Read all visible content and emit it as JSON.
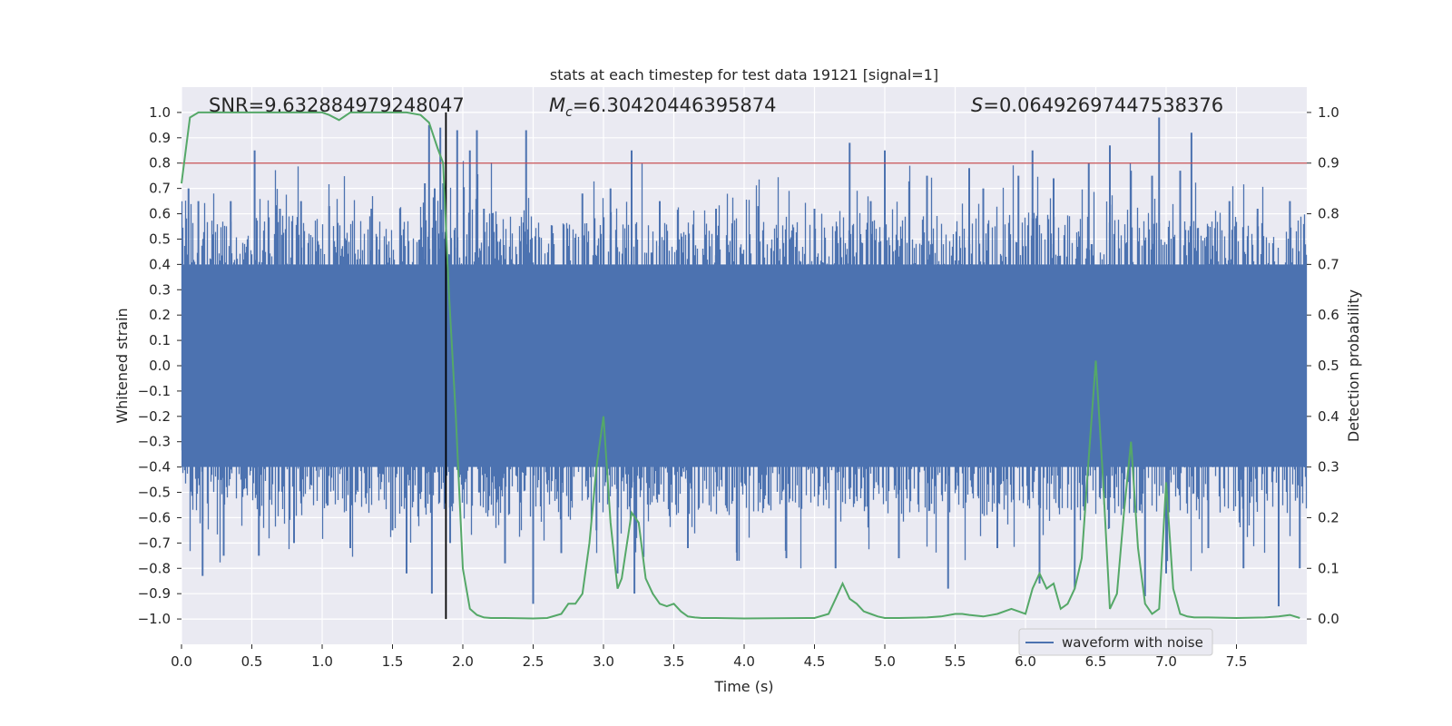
{
  "chart_data": {
    "type": "line",
    "title": "stats at each timestep for test data 19121 [signal=1]",
    "xlabel": "Time (s)",
    "ylabel": "Whitened strain",
    "y2label": "Detection probability",
    "xlim": [
      0,
      8
    ],
    "ylim": [
      -1.1,
      1.1
    ],
    "y2lim": [
      -0.05,
      1.05
    ],
    "x_ticks": [
      "0.0",
      "0.5",
      "1.0",
      "1.5",
      "2.0",
      "2.5",
      "3.0",
      "3.5",
      "4.0",
      "4.5",
      "5.0",
      "5.5",
      "6.0",
      "6.5",
      "7.0",
      "7.5"
    ],
    "y_ticks": [
      "1.0",
      "0.9",
      "0.8",
      "0.7",
      "0.6",
      "0.5",
      "0.4",
      "0.3",
      "0.2",
      "0.1",
      "0.0",
      "-0.1",
      "-0.2",
      "-0.3",
      "-0.4",
      "-0.5",
      "-0.6",
      "-0.7",
      "-0.8",
      "-0.9",
      "-1.0"
    ],
    "y2_ticks": [
      "1.0",
      "0.9",
      "0.8",
      "0.7",
      "0.6",
      "0.5",
      "0.4",
      "0.3",
      "0.2",
      "0.1",
      "0.0"
    ],
    "annotations": {
      "snr": "SNR=9.632884979248047",
      "mc_symbol": "M",
      "mc_subscript": "c",
      "mc_value": "=6.30420446395874",
      "s_symbol": "S",
      "s_value": "=0.06492697447538376"
    },
    "threshold_y2": 0.9,
    "event_time": 1.88,
    "legend": {
      "label": "waveform with noise",
      "location": "lower-right"
    },
    "series": [
      {
        "name": "waveform with noise",
        "axis": "left",
        "color": "#4c72b0",
        "envelope_hi": [
          0.4,
          0.42,
          0.4,
          0.41,
          0.44,
          0.4,
          0.39,
          0.41,
          0.4,
          0.42,
          0.4,
          0.41,
          0.43,
          0.41,
          0.4,
          0.42,
          0.41
        ],
        "envelope_lo": [
          -0.4,
          -0.42,
          -0.4,
          -0.41,
          -0.43,
          -0.4,
          -0.4,
          -0.42,
          -0.41,
          -0.4,
          -0.41,
          -0.42,
          -0.4,
          -0.41,
          -0.42,
          -0.41,
          -0.4
        ],
        "spikes": [
          [
            0.05,
            0.7
          ],
          [
            0.12,
            0.65
          ],
          [
            0.15,
            -0.83
          ],
          [
            0.3,
            -0.75
          ],
          [
            0.35,
            0.65
          ],
          [
            0.52,
            0.85
          ],
          [
            0.55,
            -0.75
          ],
          [
            0.7,
            0.62
          ],
          [
            0.8,
            -0.7
          ],
          [
            0.85,
            0.65
          ],
          [
            1.05,
            0.63
          ],
          [
            1.2,
            -0.72
          ],
          [
            1.35,
            0.62
          ],
          [
            1.5,
            -0.65
          ],
          [
            1.6,
            -0.82
          ],
          [
            1.73,
            0.72
          ],
          [
            1.76,
            0.95
          ],
          [
            1.78,
            -0.9
          ],
          [
            1.8,
            0.7
          ],
          [
            1.84,
            0.94
          ],
          [
            1.86,
            0.72
          ],
          [
            1.91,
            -0.7
          ],
          [
            1.96,
            0.93
          ],
          [
            2.05,
            0.85
          ],
          [
            2.1,
            0.93
          ],
          [
            2.15,
            0.62
          ],
          [
            2.3,
            -0.78
          ],
          [
            2.45,
            0.93
          ],
          [
            2.5,
            -0.94
          ],
          [
            2.7,
            -0.74
          ],
          [
            2.85,
            0.68
          ],
          [
            2.95,
            -0.65
          ],
          [
            3.05,
            0.7
          ],
          [
            3.1,
            -0.82
          ],
          [
            3.2,
            0.85
          ],
          [
            3.22,
            -0.9
          ],
          [
            3.4,
            0.65
          ],
          [
            3.6,
            -0.72
          ],
          [
            3.8,
            0.62
          ],
          [
            3.95,
            -0.77
          ],
          [
            4.1,
            0.63
          ],
          [
            4.3,
            -0.76
          ],
          [
            4.5,
            0.62
          ],
          [
            4.65,
            -0.8
          ],
          [
            4.75,
            0.88
          ],
          [
            4.9,
            0.65
          ],
          [
            5.0,
            0.85
          ],
          [
            5.1,
            -0.76
          ],
          [
            5.3,
            0.75
          ],
          [
            5.45,
            -0.88
          ],
          [
            5.6,
            0.78
          ],
          [
            5.7,
            0.7
          ],
          [
            5.8,
            -0.72
          ],
          [
            5.95,
            0.75
          ],
          [
            6.05,
            0.85
          ],
          [
            6.1,
            -0.86
          ],
          [
            6.2,
            0.74
          ],
          [
            6.35,
            -0.88
          ],
          [
            6.45,
            0.8
          ],
          [
            6.6,
            0.87
          ],
          [
            6.75,
            0.77
          ],
          [
            6.85,
            -0.91
          ],
          [
            6.9,
            0.75
          ],
          [
            6.95,
            0.98
          ],
          [
            7.0,
            -0.82
          ],
          [
            7.1,
            0.77
          ],
          [
            7.18,
            0.92
          ],
          [
            7.3,
            -0.72
          ],
          [
            7.45,
            0.65
          ],
          [
            7.55,
            -0.8
          ],
          [
            7.65,
            0.62
          ],
          [
            7.8,
            -0.95
          ],
          [
            7.88,
            0.65
          ],
          [
            7.95,
            -0.8
          ]
        ]
      },
      {
        "name": "detection probability",
        "axis": "right",
        "color": "#55a868",
        "x": [
          0.0,
          0.06,
          0.12,
          0.3,
          0.6,
          0.9,
          1.0,
          1.05,
          1.12,
          1.2,
          1.3,
          1.6,
          1.7,
          1.76,
          1.82,
          1.86,
          1.9,
          1.95,
          2.0,
          2.05,
          2.1,
          2.15,
          2.2,
          2.3,
          2.5,
          2.6,
          2.7,
          2.75,
          2.8,
          2.85,
          2.9,
          2.95,
          3.0,
          3.05,
          3.1,
          3.13,
          3.2,
          3.25,
          3.3,
          3.35,
          3.4,
          3.45,
          3.5,
          3.55,
          3.6,
          3.65,
          3.7,
          3.8,
          4.0,
          4.5,
          4.6,
          4.65,
          4.7,
          4.75,
          4.8,
          4.85,
          4.9,
          4.95,
          5.0,
          5.1,
          5.3,
          5.4,
          5.5,
          5.55,
          5.6,
          5.7,
          5.8,
          5.9,
          5.95,
          6.0,
          6.05,
          6.1,
          6.15,
          6.2,
          6.25,
          6.3,
          6.35,
          6.4,
          6.45,
          6.5,
          6.55,
          6.6,
          6.65,
          6.7,
          6.75,
          6.8,
          6.85,
          6.9,
          6.95,
          7.0,
          7.05,
          7.1,
          7.15,
          7.2,
          7.3,
          7.5,
          7.7,
          7.8,
          7.88,
          7.95
        ],
        "y": [
          0.86,
          0.99,
          1.0,
          1.0,
          1.0,
          1.0,
          1.0,
          0.995,
          0.985,
          1.0,
          1.0,
          1.0,
          0.995,
          0.98,
          0.93,
          0.9,
          0.65,
          0.4,
          0.1,
          0.02,
          0.008,
          0.003,
          0.002,
          0.002,
          0.001,
          0.002,
          0.01,
          0.03,
          0.03,
          0.05,
          0.15,
          0.3,
          0.4,
          0.19,
          0.06,
          0.08,
          0.21,
          0.19,
          0.08,
          0.05,
          0.03,
          0.025,
          0.03,
          0.015,
          0.005,
          0.003,
          0.002,
          0.002,
          0.001,
          0.002,
          0.01,
          0.04,
          0.07,
          0.04,
          0.03,
          0.015,
          0.01,
          0.005,
          0.002,
          0.002,
          0.003,
          0.005,
          0.01,
          0.01,
          0.008,
          0.005,
          0.01,
          0.02,
          0.015,
          0.01,
          0.06,
          0.09,
          0.06,
          0.07,
          0.02,
          0.03,
          0.06,
          0.12,
          0.32,
          0.51,
          0.28,
          0.02,
          0.05,
          0.21,
          0.35,
          0.14,
          0.03,
          0.01,
          0.02,
          0.27,
          0.06,
          0.01,
          0.005,
          0.003,
          0.003,
          0.002,
          0.003,
          0.005,
          0.008,
          0.002
        ]
      }
    ]
  }
}
